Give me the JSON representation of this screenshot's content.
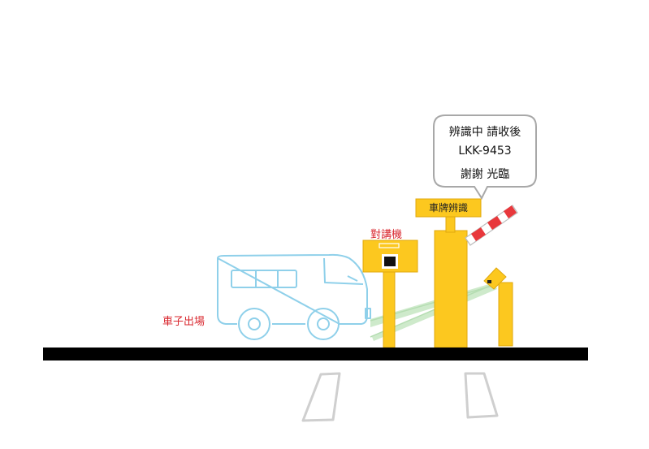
{
  "labels": {
    "vehicle_exit": "車子出場",
    "intercom": "對講機",
    "plate_recognition_sign": "車牌辨識"
  },
  "speech_bubble": {
    "line1": "辨識中 請收後",
    "line2": "LKK-9453",
    "line3": "謝謝 光臨"
  },
  "colors": {
    "yellow": "#fcc81f",
    "yellow_outline": "#e0a80e",
    "label_red": "#d9272e",
    "vehicle_blue": "#8fd0ea",
    "ground": "#000000",
    "sensor_beam": "#c6e7c3",
    "gate_red": "#e8383c",
    "lane_gray": "#cfcfcf"
  },
  "icons": {
    "vehicle": "van-outline-icon",
    "intercom": "intercom-box-icon",
    "camera": "camera-sensor-icon",
    "barrier": "barrier-arm-icon"
  }
}
